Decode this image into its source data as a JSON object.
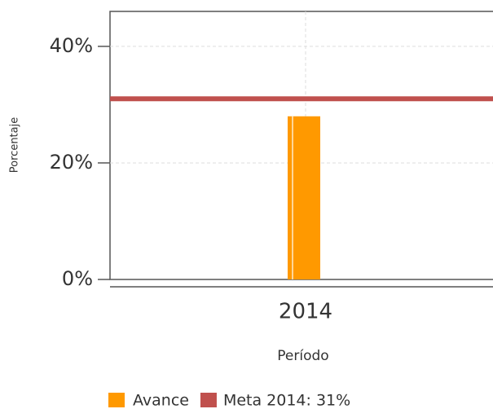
{
  "chart_data": {
    "type": "bar",
    "y_label": "Porcentaje",
    "x_label": "Período",
    "categories": [
      "2014"
    ],
    "series": [
      {
        "name": "Avance",
        "color": "#ff9900",
        "values": [
          28
        ]
      }
    ],
    "reference_line": {
      "name": "Meta 2014: 31%",
      "value": 31,
      "color": "#c0504d"
    },
    "ylim": [
      0,
      46
    ],
    "yticks": [
      {
        "value": 0,
        "label": "0%"
      },
      {
        "value": 20,
        "label": "20%"
      },
      {
        "value": 40,
        "label": "40%"
      }
    ],
    "grid": true
  }
}
